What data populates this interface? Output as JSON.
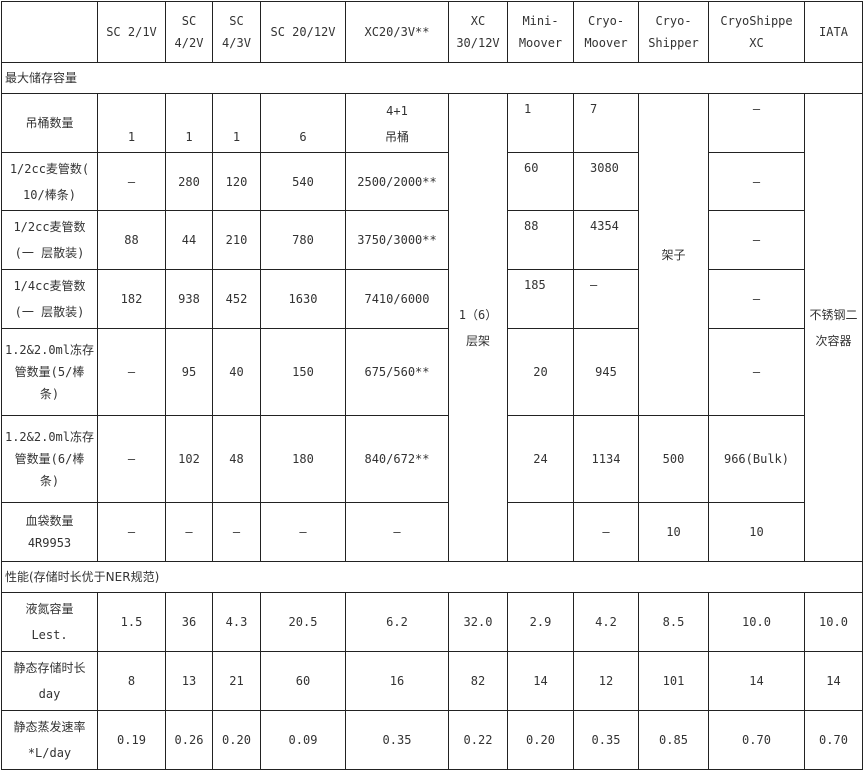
{
  "table": {
    "header": [
      "",
      "SC  2/1V",
      "SC\n4/2V",
      "SC\n4/3V",
      "SC  20/12V",
      "XC20/3V**",
      "XC\n30/12V",
      "Mini-\nMoover",
      "Cryo-\nMoover",
      "Cryo-\nShipper",
      "CryoShippe\nXC",
      "IATA"
    ],
    "section_capacity": "最大储存容量",
    "capacity_rows": [
      [
        "吊桶数量",
        "1",
        "1",
        "1",
        "6",
        "4+1\n吊桶",
        "1（6）\n层架",
        "1",
        "7",
        "架子",
        "–",
        "不锈钢二\n次容器"
      ],
      [
        "1/2cc麦管数(\n10/棒条)",
        "–",
        "280",
        "120",
        "540",
        "2500/2000**",
        null,
        "60",
        "3080",
        null,
        "–",
        null
      ],
      [
        "1/2cc麦管数\n(一 层散装)",
        "88",
        "44",
        "210",
        "780",
        "3750/3000**",
        null,
        "88",
        "4354",
        null,
        "–",
        null
      ],
      [
        "1/4cc麦管数\n(一 层散装)",
        "182",
        "938",
        "452",
        "1630",
        "7410/6000",
        null,
        "185",
        "–",
        null,
        "–",
        null
      ],
      [
        "1.2&2.0ml冻存\n管数量(5/棒\n条)",
        "–",
        "95",
        "40",
        "150",
        "675/560**",
        null,
        "20",
        "945",
        null,
        "–",
        null
      ],
      [
        "1.2&2.0ml冻存\n管数量(6/棒\n条)",
        "–",
        "102",
        "48",
        "180",
        "840/672**",
        null,
        "24",
        "1134",
        "500",
        "966(Bulk)",
        null
      ],
      [
        "血袋数量\n4R9953",
        "–",
        "–",
        "–",
        "–",
        "–",
        null,
        "",
        "–",
        "10",
        "10",
        null
      ]
    ],
    "section_performance": "性能(存储时长优于NER规范)",
    "performance_rows": [
      [
        "液氮容量\nLest.",
        "1.5",
        "36",
        "4.3",
        "20.5",
        "6.2",
        "32.0",
        "2.9",
        "4.2",
        "8.5",
        "10.0",
        "10.0"
      ],
      [
        "静态存储时长\nday",
        "8",
        "13",
        "21",
        "60",
        "16",
        "82",
        "14",
        "12",
        "101",
        "14",
        "14"
      ],
      [
        "静态蒸发速率\n*L/day",
        "0.19",
        "0.26",
        "0.20",
        "0.09",
        "0.35",
        "0.22",
        "0.20",
        "0.35",
        "0.85",
        "0.70",
        "0.70"
      ]
    ]
  }
}
